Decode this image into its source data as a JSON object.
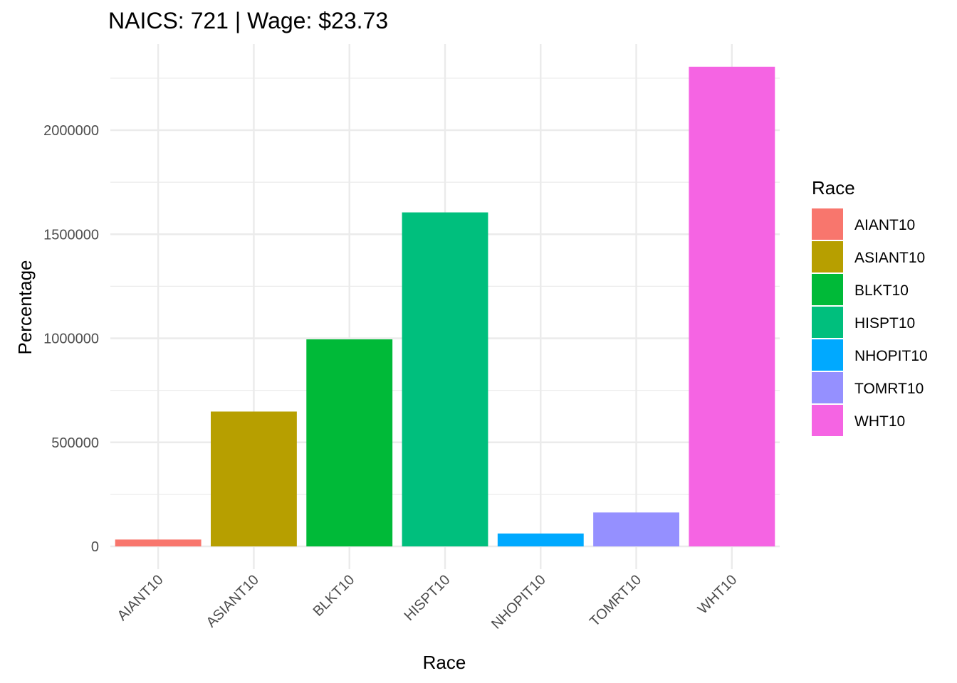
{
  "chart_data": {
    "type": "bar",
    "title": "NAICS: 721 | Wage: $23.73",
    "xlabel": "Race",
    "ylabel": "Percentage",
    "categories": [
      "AIANT10",
      "ASIANT10",
      "BLKT10",
      "HISPT10",
      "NHOPIT10",
      "TOMRT10",
      "WHT10"
    ],
    "values": [
      33000,
      648000,
      995000,
      1605000,
      62000,
      163000,
      2305000
    ],
    "colors": [
      "#F8766D",
      "#B79F00",
      "#00BA38",
      "#00BF7D",
      "#00A9FF",
      "#9590FF",
      "#F564E3"
    ],
    "y_ticks": [
      0,
      500000,
      1000000,
      1500000,
      2000000
    ],
    "y_tick_labels": [
      "0",
      "500000",
      "1000000",
      "1500000",
      "2000000"
    ],
    "ylim": [
      -115000,
      2420000
    ],
    "grid": true,
    "legend": {
      "title": "Race",
      "position": "right",
      "entries": [
        "AIANT10",
        "ASIANT10",
        "BLKT10",
        "HISPT10",
        "NHOPIT10",
        "TOMRT10",
        "WHT10"
      ]
    }
  }
}
